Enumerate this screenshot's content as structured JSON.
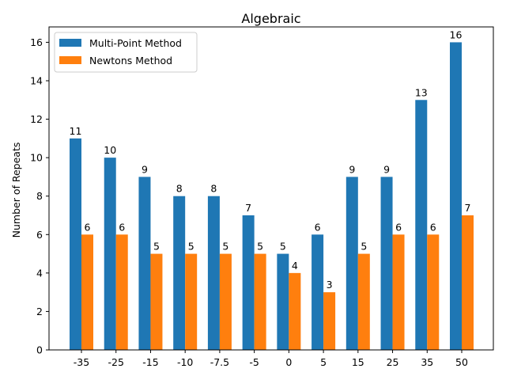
{
  "chart_data": {
    "type": "bar",
    "title": "Algebraic",
    "xlabel": "",
    "ylabel": "Number of Repeats",
    "categories": [
      "-35",
      "-25",
      "-15",
      "-10",
      "-7.5",
      "-5",
      "0",
      "5",
      "15",
      "25",
      "35",
      "50"
    ],
    "series": [
      {
        "name": "Multi-Point Method",
        "color": "#1f77b4",
        "values": [
          11,
          10,
          9,
          8,
          8,
          7,
          5,
          6,
          9,
          9,
          13,
          16
        ]
      },
      {
        "name": "Newtons Method",
        "color": "#ff7f0e",
        "values": [
          6,
          6,
          5,
          5,
          5,
          5,
          4,
          3,
          5,
          6,
          6,
          7
        ]
      }
    ],
    "ylim": [
      0,
      16.8
    ],
    "yticks": [
      0,
      2,
      4,
      6,
      8,
      10,
      12,
      14,
      16
    ],
    "legend": "top-left",
    "grid": false
  }
}
